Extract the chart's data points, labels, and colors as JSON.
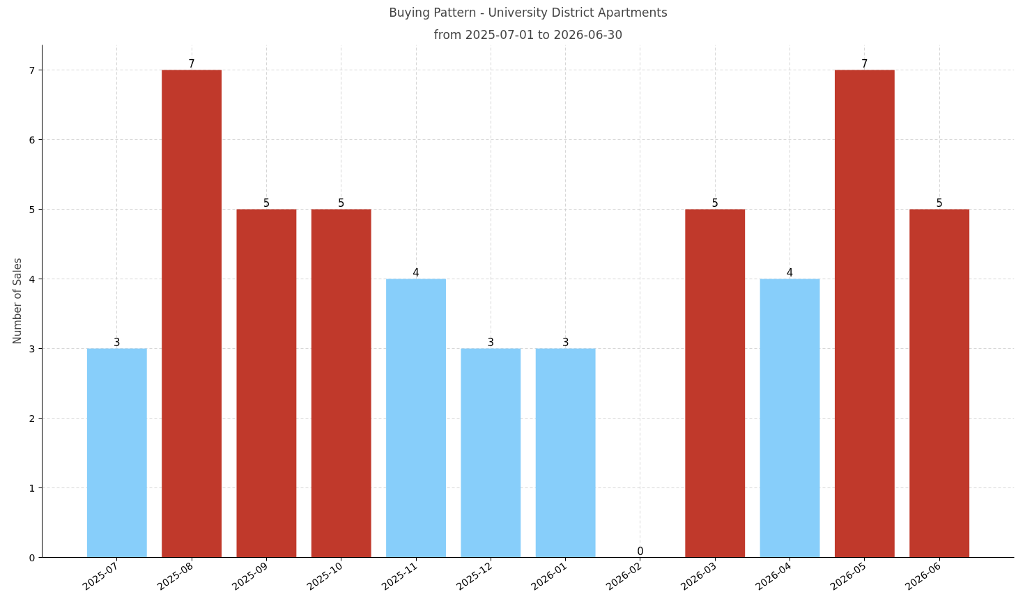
{
  "chart_data": {
    "type": "bar",
    "title": "Buying Pattern - University District Apartments",
    "subtitle": "from 2025-07-01 to 2026-06-30",
    "ylabel": "Number of Sales",
    "categories": [
      "2025-07",
      "2025-08",
      "2025-09",
      "2025-10",
      "2025-11",
      "2025-12",
      "2026-01",
      "2026-02",
      "2026-03",
      "2026-04",
      "2026-05",
      "2026-06"
    ],
    "values": [
      3,
      7,
      5,
      5,
      4,
      3,
      3,
      0,
      5,
      4,
      7,
      5
    ],
    "colors": [
      "#87cefa",
      "#c0392b",
      "#c0392b",
      "#c0392b",
      "#87cefa",
      "#87cefa",
      "#87cefa",
      "#87cefa",
      "#c0392b",
      "#87cefa",
      "#c0392b",
      "#c0392b"
    ],
    "ylim": [
      0,
      7.36
    ],
    "yticks": [
      0,
      1,
      2,
      3,
      4,
      5,
      6,
      7
    ],
    "grid": true,
    "data_labels": true
  }
}
